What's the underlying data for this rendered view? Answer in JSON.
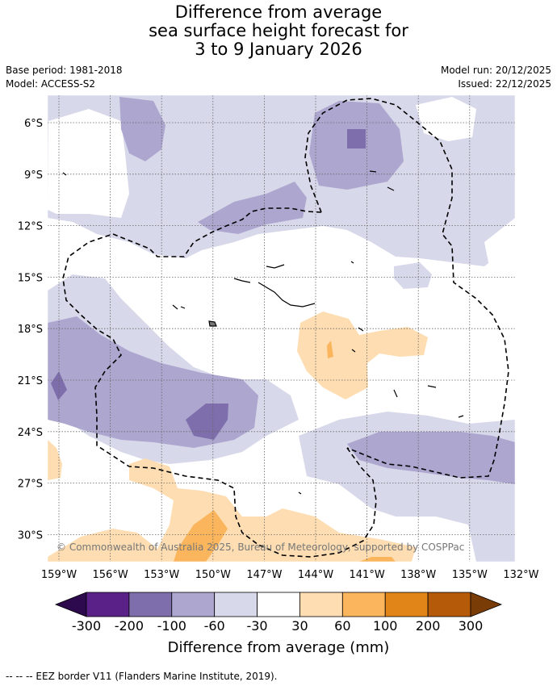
{
  "title": {
    "line1": "Difference from average",
    "line2": "sea surface height forecast for",
    "line3": "3 to 9 January 2026"
  },
  "meta": {
    "base_period": "Base period: 1981-2018",
    "model": "Model: ACCESS-S2",
    "model_run": "Model run: 20/12/2025",
    "issued": "Issued: 22/12/2025"
  },
  "map": {
    "lon_labels": [
      "159°W",
      "156°W",
      "153°W",
      "150°W",
      "147°W",
      "144°W",
      "141°W",
      "138°W",
      "135°W",
      "132°W"
    ],
    "lat_labels": [
      "6°S",
      "9°S",
      "12°S",
      "15°S",
      "18°S",
      "21°S",
      "24°S",
      "27°S",
      "30°S"
    ],
    "copyright": "© Commonwealth of Australia 2025, Bureau of Meteorology, supported by COSPPac"
  },
  "colorbar": {
    "title": "Difference from average (mm)",
    "labels": [
      "-300",
      "-200",
      "-100",
      "-60",
      "-30",
      "30",
      "60",
      "100",
      "200",
      "300"
    ],
    "colors": {
      "below_min": "#2d0a4e",
      "c1": "#5a2288",
      "c2": "#7f6eac",
      "c3": "#ada7d0",
      "c4": "#d7d8ea",
      "c5": "#ffffff",
      "c6": "#fdddb1",
      "c7": "#fbb55d",
      "c8": "#e28519",
      "c9": "#b55a08",
      "above_max": "#7a3c06"
    }
  },
  "footnote": "--  --  -- EEZ border V11 (Flanders Marine Institute, 2019)."
}
